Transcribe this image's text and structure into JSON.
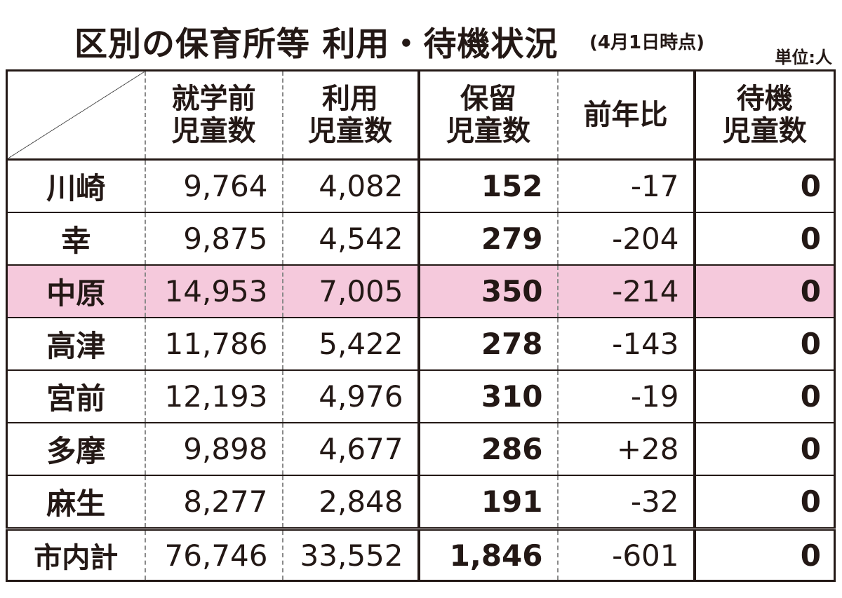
{
  "title": {
    "main": "区別の保育所等 利用・待機状況",
    "note": "(4月1日時点)",
    "unit": "単位:人"
  },
  "table": {
    "headers": {
      "preschool": [
        "就学前",
        "児童数"
      ],
      "used": [
        "利用",
        "児童数"
      ],
      "hold": [
        "保留",
        "児童数"
      ],
      "yoy": "前年比",
      "waiting": [
        "待機",
        "児童数"
      ]
    },
    "rows": [
      {
        "ward": "川崎",
        "preschool": "9,764",
        "used": "4,082",
        "hold": "152",
        "yoy": "-17",
        "waiting": "0"
      },
      {
        "ward": "幸",
        "preschool": "9,875",
        "used": "4,542",
        "hold": "279",
        "yoy": "-204",
        "waiting": "0"
      },
      {
        "ward": "中原",
        "preschool": "14,953",
        "used": "7,005",
        "hold": "350",
        "yoy": "-214",
        "waiting": "0"
      },
      {
        "ward": "高津",
        "preschool": "11,786",
        "used": "5,422",
        "hold": "278",
        "yoy": "-143",
        "waiting": "0"
      },
      {
        "ward": "宮前",
        "preschool": "12,193",
        "used": "4,976",
        "hold": "310",
        "yoy": "-19",
        "waiting": "0"
      },
      {
        "ward": "多摩",
        "preschool": "9,898",
        "used": "4,677",
        "hold": "286",
        "yoy": "+28",
        "waiting": "0"
      },
      {
        "ward": "麻生",
        "preschool": "8,277",
        "used": "2,848",
        "hold": "191",
        "yoy": "-32",
        "waiting": "0"
      }
    ],
    "total": {
      "ward": "市内計",
      "preschool": "76,746",
      "used": "33,552",
      "hold": "1,846",
      "yoy": "-601",
      "waiting": "0"
    },
    "highlight_color": "#f5c9dc"
  }
}
